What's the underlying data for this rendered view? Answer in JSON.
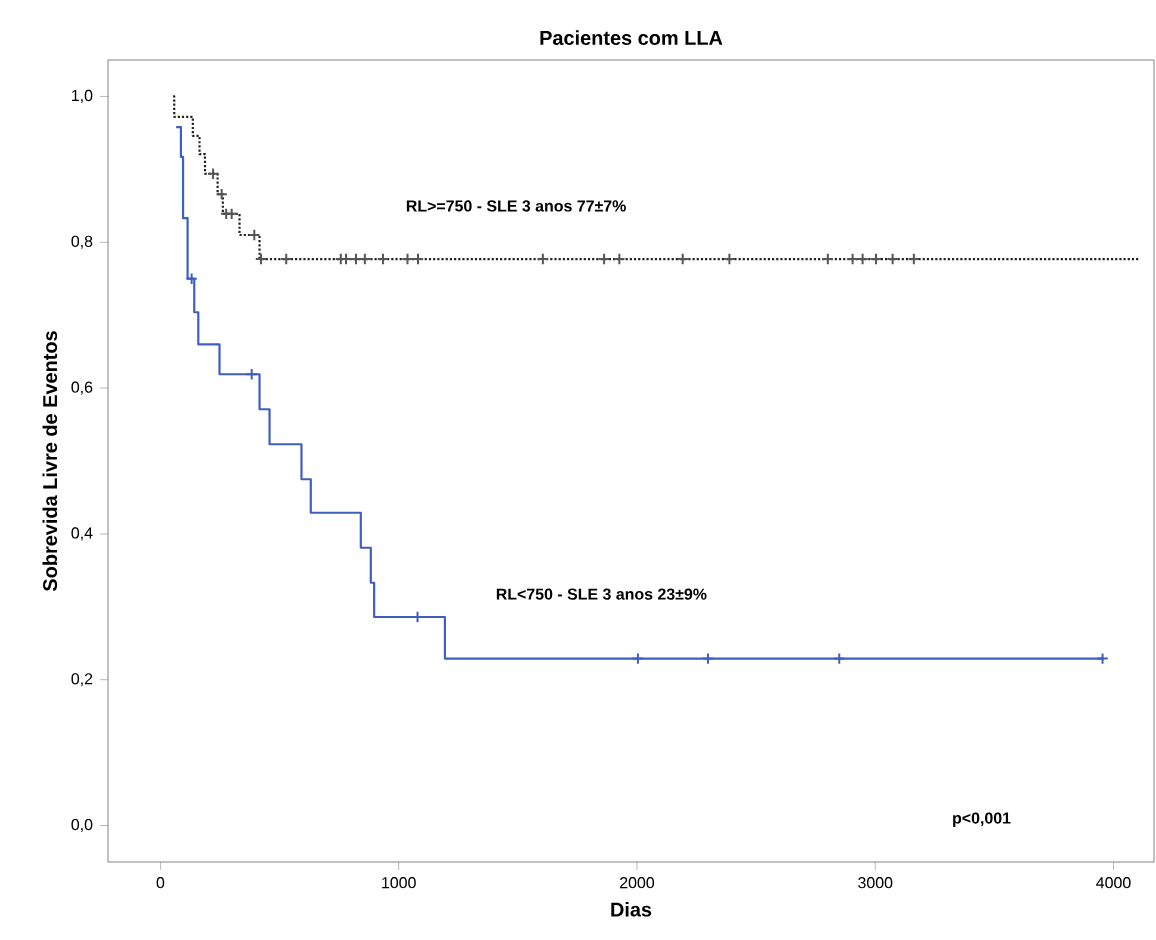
{
  "chart_data": {
    "type": "step",
    "title": "Pacientes com LLA",
    "xlabel": "Dias",
    "ylabel": "Sobrevida Livre de Eventos",
    "xlim": [
      -220,
      4170
    ],
    "ylim": [
      -0.05,
      1.05
    ],
    "xticks": [
      0,
      1000,
      2000,
      3000,
      4000
    ],
    "yticks": [
      {
        "value": 0.0,
        "label": "0,0"
      },
      {
        "value": 0.2,
        "label": "0,2"
      },
      {
        "value": 0.4,
        "label": "0,4"
      },
      {
        "value": 0.6,
        "label": "0,6"
      },
      {
        "value": 0.8,
        "label": "0,8"
      },
      {
        "value": 1.0,
        "label": "1,0"
      }
    ],
    "series": [
      {
        "color": "#3f5fbf",
        "line_style": "solid",
        "x": [
          66,
          86,
          95,
          114,
          142,
          159,
          248,
          416,
          458,
          592,
          631,
          841,
          883,
          897,
          1194,
          3960
        ],
        "values": [
          0.958,
          0.917,
          0.833,
          0.75,
          0.704,
          0.66,
          0.619,
          0.571,
          0.523,
          0.475,
          0.429,
          0.381,
          0.333,
          0.286,
          0.229,
          0.229
        ]
      },
      {
        "type": "scatter",
        "marker": "cross",
        "color": "#3f5fbf",
        "x": [
          131,
          383,
          1079,
          2004,
          2298,
          2849,
          3954
        ],
        "values": [
          0.75,
          0.619,
          0.286,
          0.229,
          0.229,
          0.229,
          0.229
        ]
      },
      {
        "color": "#222222",
        "line_style": "dotted",
        "x": [
          53,
          58,
          136,
          164,
          187,
          240,
          262,
          332,
          416,
          4107
        ],
        "values": [
          1.0,
          0.972,
          0.946,
          0.921,
          0.894,
          0.866,
          0.839,
          0.81,
          0.777,
          0.777
        ]
      },
      {
        "type": "scatter",
        "marker": "cross",
        "color": "#555555",
        "x": [
          221,
          257,
          276,
          299,
          394,
          422,
          528,
          757,
          779,
          821,
          858,
          934,
          1037,
          1081,
          1605,
          1862,
          1926,
          2192,
          2388,
          2801,
          2905,
          2947,
          3003,
          3073,
          3162
        ],
        "values": [
          0.894,
          0.866,
          0.839,
          0.839,
          0.81,
          0.777,
          0.777,
          0.777,
          0.777,
          0.777,
          0.777,
          0.777,
          0.777,
          0.777,
          0.777,
          0.777,
          0.777,
          0.777,
          0.777,
          0.777,
          0.777,
          0.777,
          0.777,
          0.777,
          0.777
        ]
      }
    ],
    "annotations": [
      "RL>=750 - SLE 3 anos 77±7%",
      "RL<750 - SLE 3 anos 23±9%",
      "p<0,001"
    ]
  }
}
